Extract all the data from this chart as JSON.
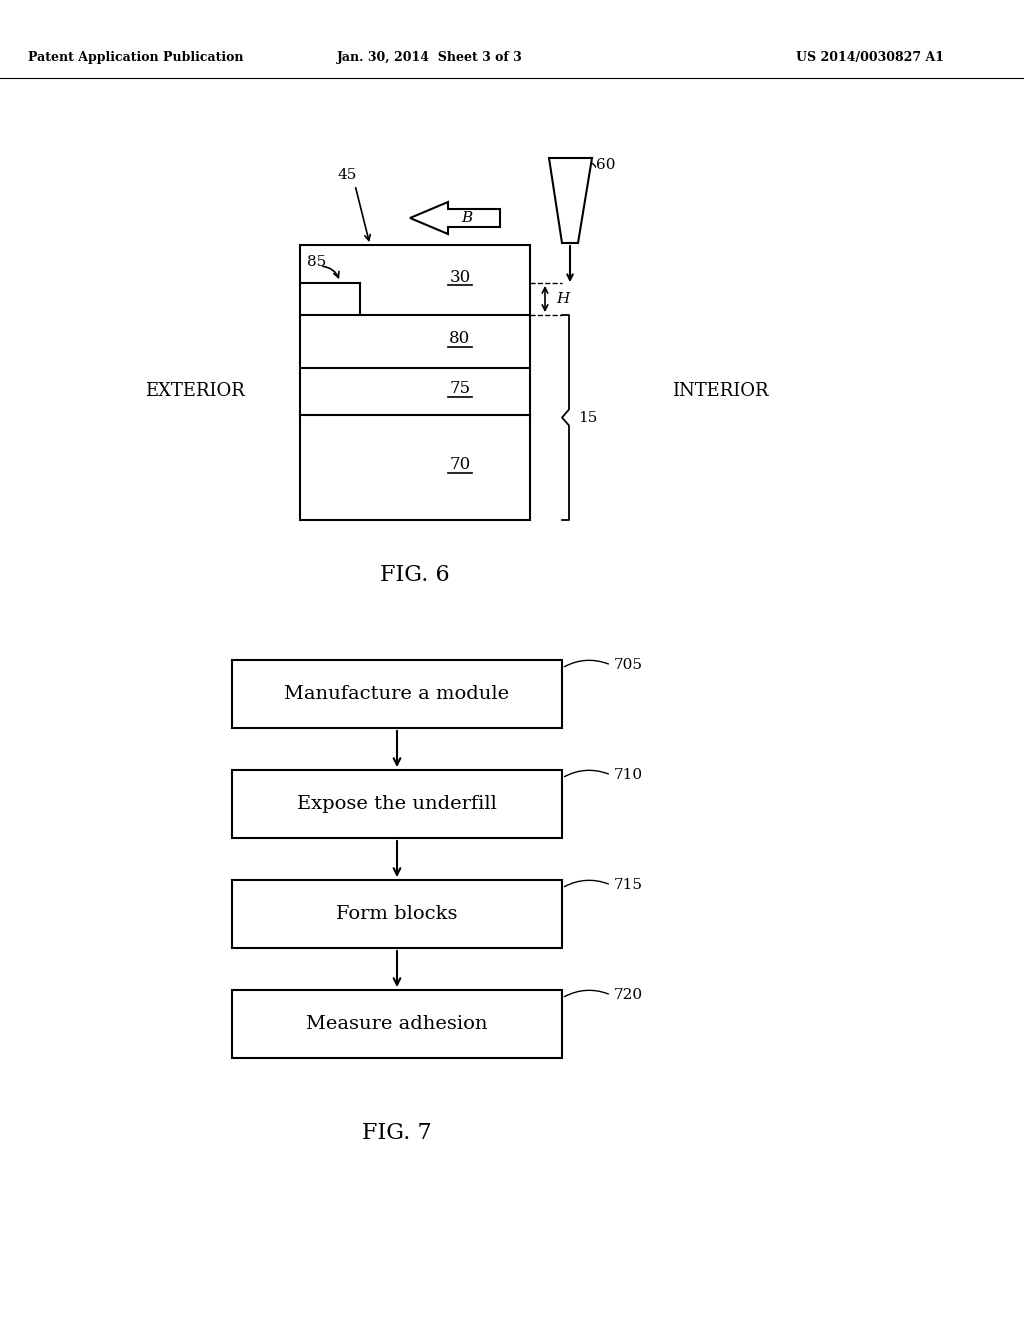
{
  "bg_color": "#ffffff",
  "header_left": "Patent Application Publication",
  "header_mid": "Jan. 30, 2014  Sheet 3 of 3",
  "header_right": "US 2014/0030827 A1",
  "fig6_label": "FIG. 6",
  "fig7_label": "FIG. 7",
  "exterior_label": "EXTERIOR",
  "interior_label": "INTERIOR",
  "flow_steps": [
    "Manufacture a module",
    "Expose the underfill",
    "Form blocks",
    "Measure adhesion"
  ],
  "flow_labels": [
    "705",
    "710",
    "715",
    "720"
  ],
  "layer_labels": [
    "30",
    "80",
    "75",
    "70"
  ]
}
